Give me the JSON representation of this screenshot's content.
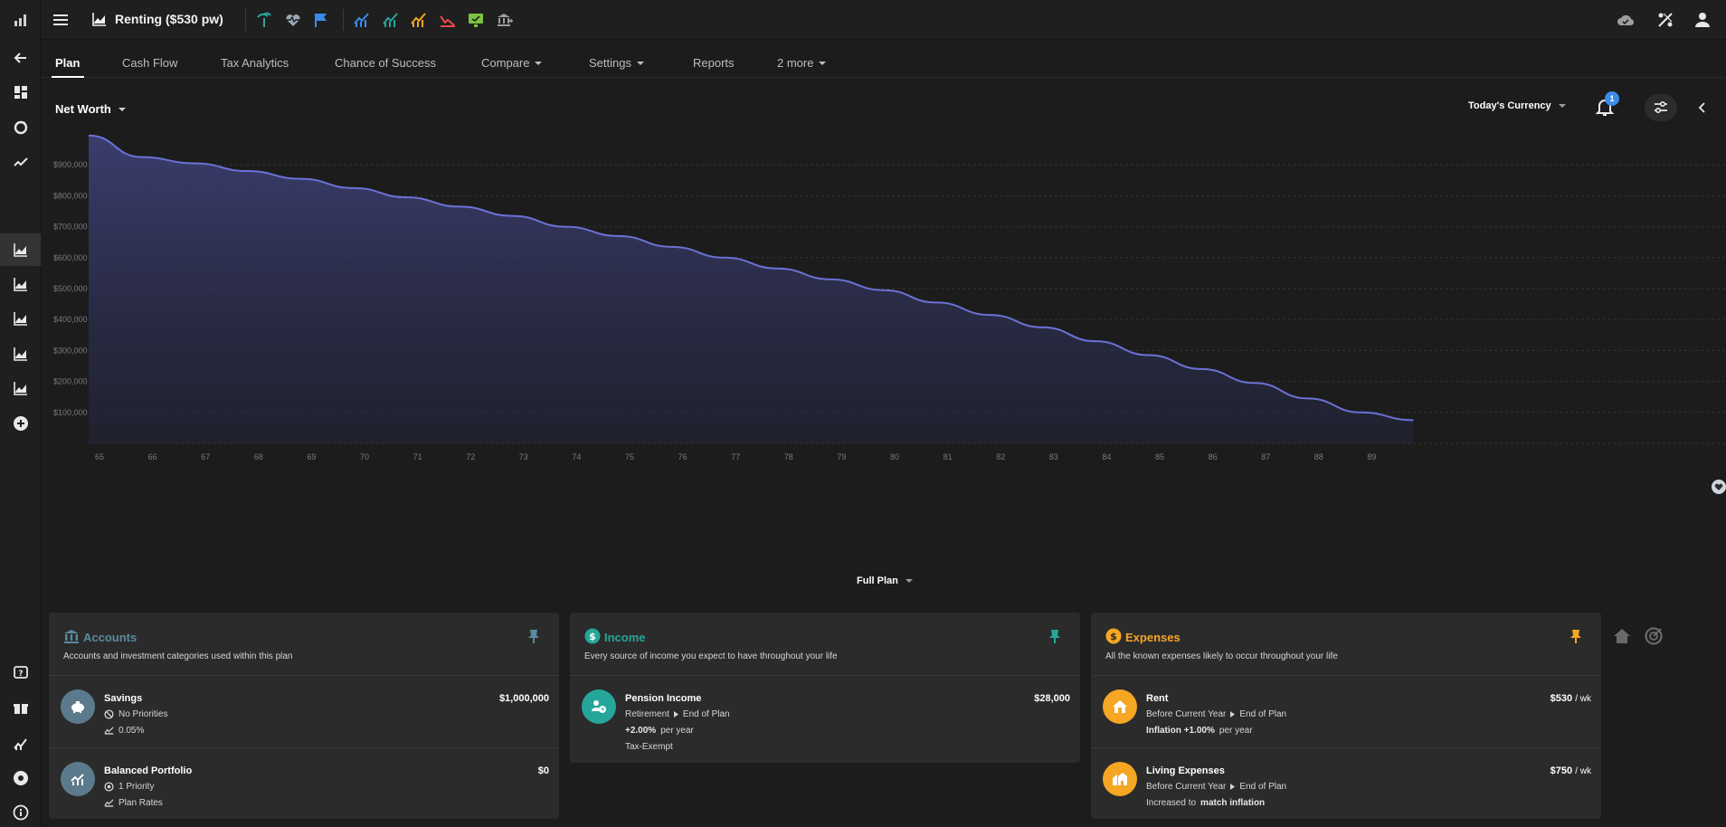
{
  "header": {
    "plan_title": "Renting ($530 pw)"
  },
  "tabs": [
    {
      "label": "Plan"
    },
    {
      "label": "Cash Flow"
    },
    {
      "label": "Tax Analytics"
    },
    {
      "label": "Chance of Success"
    },
    {
      "label": "Compare"
    },
    {
      "label": "Settings"
    },
    {
      "label": "Reports"
    },
    {
      "label": "2 more"
    }
  ],
  "chart_controls": {
    "metric": "Net Worth",
    "currency": "Today's Currency",
    "notifications_count": "1",
    "range": "Full Plan"
  },
  "colors": {
    "accent_accounts": "#5a8a9e",
    "accent_income": "#26a69a",
    "accent_expenses": "#f5a623",
    "line": "#6b72d6"
  },
  "chart_data": {
    "type": "area",
    "title": "",
    "xlabel": "",
    "ylabel": "",
    "x": [
      65,
      66,
      67,
      68,
      69,
      70,
      71,
      72,
      73,
      74,
      75,
      76,
      77,
      78,
      79,
      80,
      81,
      82,
      83,
      84,
      85,
      86,
      87,
      88,
      89,
      89.99
    ],
    "series": [
      {
        "values": [
          995000,
          925000,
          905000,
          880000,
          855000,
          825000,
          795000,
          765000,
          735000,
          700000,
          670000,
          635000,
          600000,
          565000,
          530000,
          495000,
          455000,
          415000,
          375000,
          330000,
          285000,
          240000,
          195000,
          145000,
          100000,
          75000
        ]
      }
    ],
    "ylim": [
      0,
      1000000
    ],
    "y_ticks": [
      "$100,000",
      "$200,000",
      "$300,000",
      "$400,000",
      "$500,000",
      "$600,000",
      "$700,000",
      "$800,000",
      "$900,000"
    ],
    "x_ticks": [
      "65",
      "66",
      "67",
      "68",
      "69",
      "70",
      "71",
      "72",
      "73",
      "74",
      "75",
      "76",
      "77",
      "78",
      "79",
      "80",
      "81",
      "82",
      "83",
      "84",
      "85",
      "86",
      "87",
      "88",
      "89"
    ],
    "grid": true
  },
  "cards": {
    "accounts": {
      "title": "Accounts",
      "desc": "Accounts and investment categories used within this plan",
      "rows": [
        {
          "name": "Savings",
          "amount": "$1,000,000",
          "line1": "No Priorities",
          "line2": "0.05%"
        },
        {
          "name": "Balanced Portfolio",
          "amount": "$0",
          "line1": "1 Priority",
          "line2": "Plan Rates"
        }
      ]
    },
    "income": {
      "title": "Income",
      "desc": "Every source of income you expect to have throughout your life",
      "rows": [
        {
          "name": "Pension Income",
          "amount": "$28,000",
          "from": "Retirement",
          "to": "End of Plan",
          "rate": "+2.00%",
          "rate_suffix": "per year",
          "note": "Tax-Exempt"
        }
      ]
    },
    "expenses": {
      "title": "Expenses",
      "desc": "All the known expenses likely to occur throughout your life",
      "rows": [
        {
          "name": "Rent",
          "amount": "$530",
          "unit": "/ wk",
          "from": "Before Current Year",
          "to": "End of Plan",
          "detail_bold": "Inflation +1.00%",
          "detail_rest": "per year"
        },
        {
          "name": "Living Expenses",
          "amount": "$750",
          "unit": "/ wk",
          "from": "Before Current Year",
          "to": "End of Plan",
          "detail_plain": "Increased to",
          "detail_bold": "match inflation"
        }
      ]
    }
  }
}
